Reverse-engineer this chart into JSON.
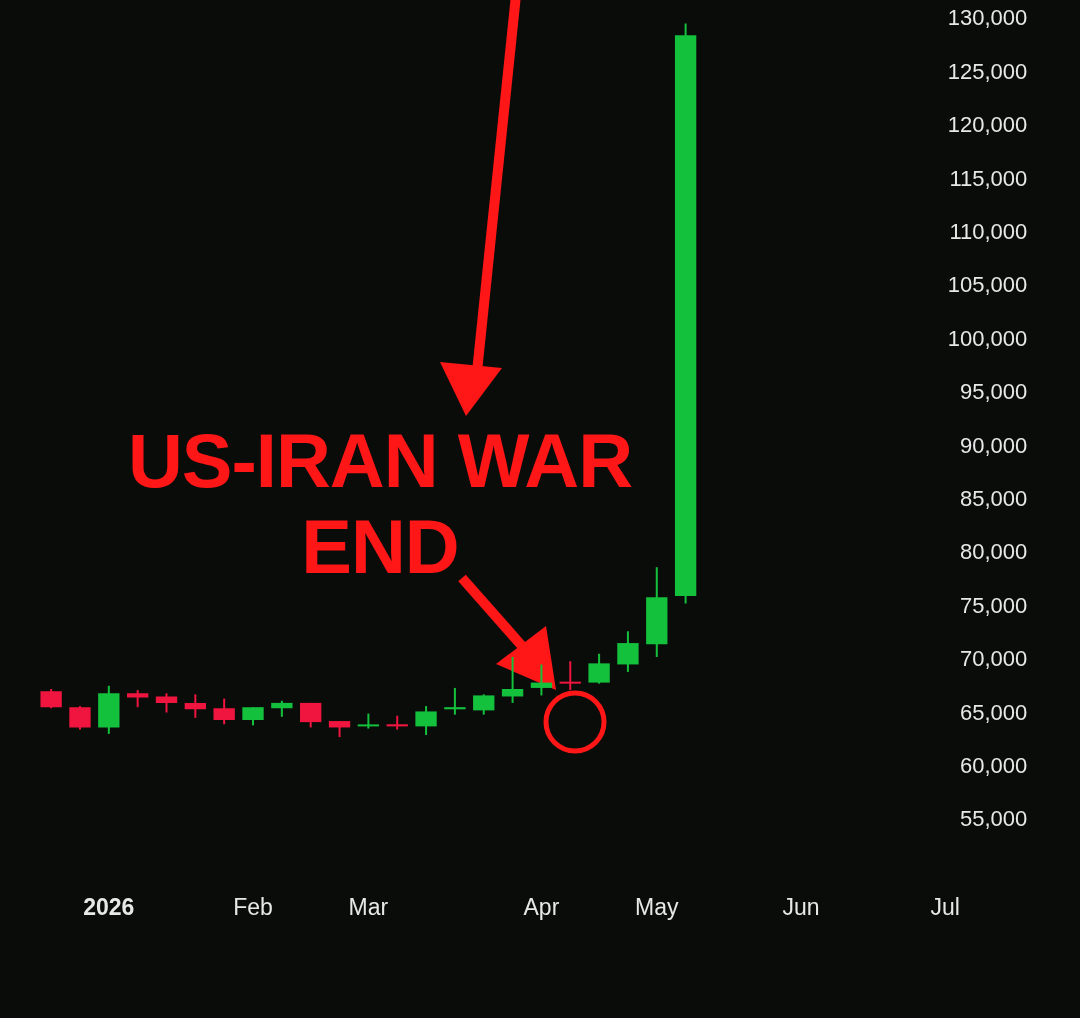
{
  "chart_data": {
    "type": "candlestick",
    "categories": [
      null,
      null,
      "2026",
      null,
      null,
      null,
      null,
      "Feb",
      null,
      null,
      null,
      "Mar",
      null,
      null,
      null,
      null,
      null,
      "Apr",
      null,
      null,
      null,
      "May",
      null,
      null,
      null,
      null,
      "Jun",
      null,
      null,
      null,
      null,
      "Jul",
      null,
      null
    ],
    "ohlc": [
      [
        67100,
        67300,
        65500,
        65600
      ],
      [
        65600,
        65700,
        63500,
        63700
      ],
      [
        63700,
        67600,
        63100,
        66900
      ],
      [
        66900,
        67200,
        65600,
        66500
      ],
      [
        66600,
        66900,
        65100,
        66000
      ],
      [
        66000,
        66800,
        64600,
        65400
      ],
      [
        65500,
        66400,
        64000,
        64400
      ],
      [
        64400,
        65600,
        63900,
        65600
      ],
      [
        65500,
        66200,
        64700,
        66000
      ],
      [
        66000,
        66000,
        63700,
        64200
      ],
      [
        64300,
        64300,
        62800,
        63700
      ],
      [
        63800,
        65000,
        63600,
        63900
      ],
      [
        64000,
        64800,
        63500,
        63800
      ],
      [
        63800,
        65700,
        63000,
        65200
      ],
      [
        65400,
        67400,
        64900,
        65600
      ],
      [
        65300,
        66800,
        64900,
        66700
      ],
      [
        66600,
        70300,
        66000,
        67300
      ],
      [
        67400,
        69600,
        66700,
        67900
      ],
      [
        67900,
        69900,
        67200,
        67800
      ],
      [
        67900,
        70600,
        67800,
        69700
      ],
      [
        69600,
        72700,
        68900,
        71600
      ],
      [
        71500,
        78700,
        70300,
        75900
      ],
      [
        76000,
        129600,
        75300,
        128500
      ],
      null,
      null,
      null,
      null,
      null,
      null,
      null,
      null,
      null,
      null,
      null
    ],
    "colors": [
      "#f0153f",
      "#f0153f",
      "#14c13c",
      "#f0153f",
      "#f0153f",
      "#f0153f",
      "#f0153f",
      "#14c13c",
      "#14c13c",
      "#f0153f",
      "#f0153f",
      "#14c13c",
      "#f0153f",
      "#14c13c",
      "#14c13c",
      "#14c13c",
      "#14c13c",
      "#14c13c",
      "#f0153f",
      "#14c13c",
      "#14c13c",
      "#14c13c",
      "#14c13c",
      null,
      null,
      null,
      null,
      null,
      null,
      null,
      null,
      null,
      null,
      null
    ],
    "ylim": [
      55000,
      130000
    ],
    "yticks": [
      {
        "value": 55000,
        "label": "55,000"
      },
      {
        "value": 60000,
        "label": "60,000"
      },
      {
        "value": 65000,
        "label": "65,000"
      },
      {
        "value": 70000,
        "label": "70,000"
      },
      {
        "value": 75000,
        "label": "75,000"
      },
      {
        "value": 80000,
        "label": "80,000"
      },
      {
        "value": 85000,
        "label": "85,000"
      },
      {
        "value": 90000,
        "label": "90,000"
      },
      {
        "value": 95000,
        "label": "95,000"
      },
      {
        "value": 100000,
        "label": "100,000"
      },
      {
        "value": 105000,
        "label": "105,000"
      },
      {
        "value": 110000,
        "label": "110,000"
      },
      {
        "value": 115000,
        "label": "115,000"
      },
      {
        "value": 120000,
        "label": "120,000"
      },
      {
        "value": 125000,
        "label": "125,000"
      },
      {
        "value": 130000,
        "label": "130,000"
      }
    ],
    "legend": false,
    "annotations": [
      "US-IRAN WAR END"
    ]
  }
}
